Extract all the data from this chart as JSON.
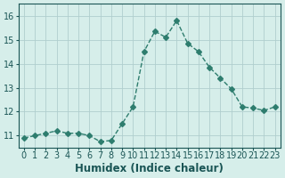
{
  "x": [
    0,
    1,
    2,
    3,
    4,
    5,
    6,
    7,
    8,
    9,
    10,
    11,
    12,
    13,
    14,
    15,
    16,
    17,
    18,
    19,
    20,
    21,
    22,
    23
  ],
  "y": [
    10.9,
    11.0,
    11.1,
    11.2,
    11.1,
    11.1,
    11.0,
    10.75,
    10.8,
    11.5,
    12.2,
    14.5,
    15.35,
    15.1,
    15.8,
    14.85,
    14.5,
    13.85,
    13.4,
    12.95,
    12.2,
    12.15,
    12.05,
    12.2
  ],
  "line_color": "#2e7d6e",
  "marker": "D",
  "marker_size": 3,
  "bg_color": "#d6eeea",
  "grid_color": "#b0cece",
  "title": "",
  "xlabel": "Humidex (Indice chaleur)",
  "xlabel_color": "#1a5555",
  "ylabel": "",
  "xlim": [
    -0.5,
    23.5
  ],
  "ylim": [
    10.5,
    16.5
  ],
  "yticks": [
    11,
    12,
    13,
    14,
    15,
    16
  ],
  "xticks": [
    0,
    1,
    2,
    3,
    4,
    5,
    6,
    7,
    8,
    9,
    10,
    11,
    12,
    13,
    14,
    15,
    16,
    17,
    18,
    19,
    20,
    21,
    22,
    23
  ],
  "tick_color": "#1a5555",
  "tick_fontsize": 7,
  "xlabel_fontsize": 8.5
}
